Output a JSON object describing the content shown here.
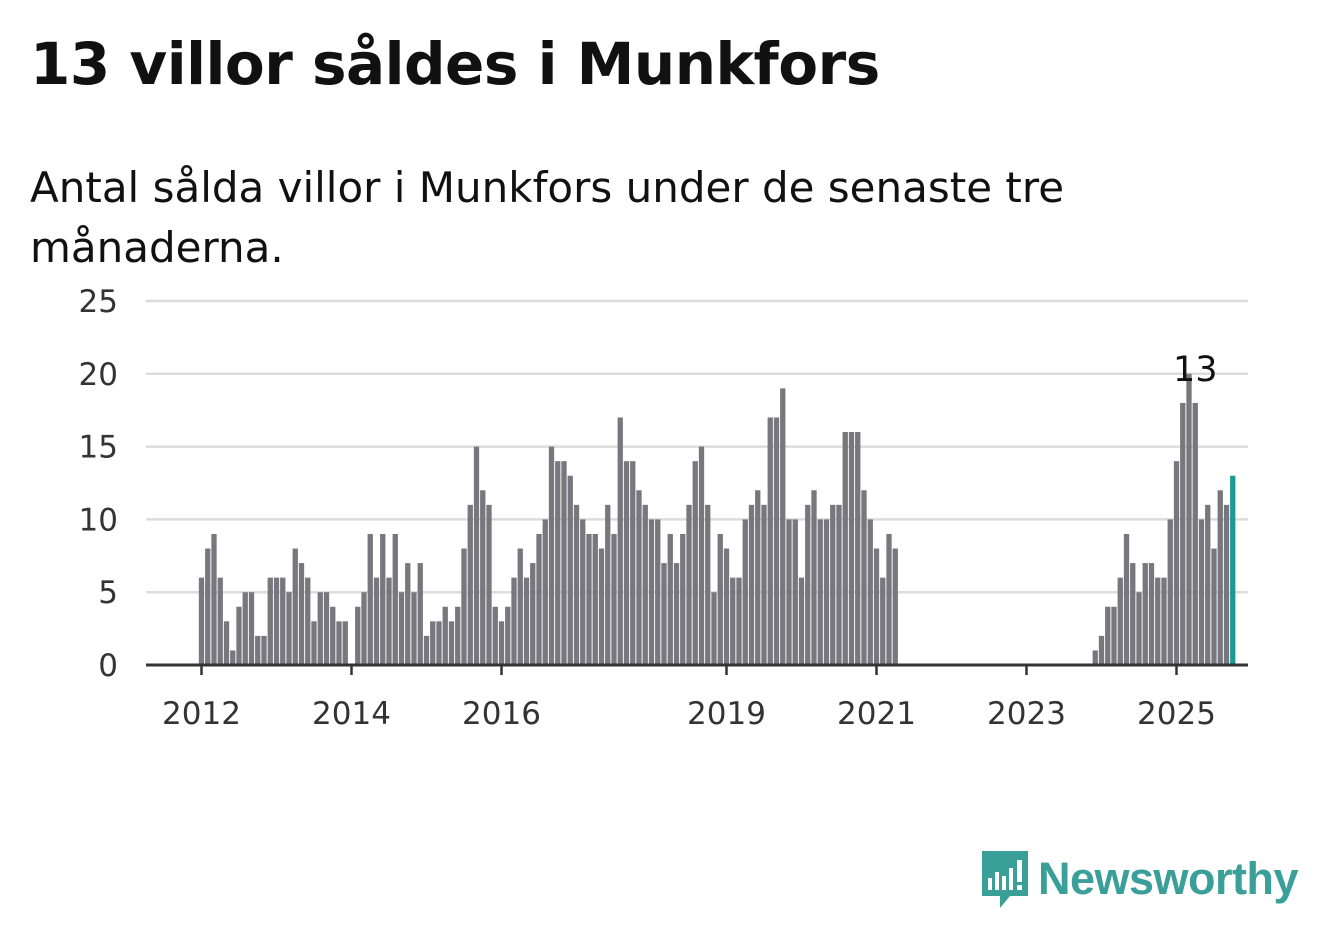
{
  "title": "13 villor såldes i Munkfors",
  "subtitle": "Antal sålda villor i Munkfors under de senaste tre månaderna.",
  "brand": {
    "name": "Newsworthy",
    "icon": "newsworthy-logo-icon",
    "color": "#3a9e99"
  },
  "chart_data": {
    "type": "bar",
    "title": "13 villor såldes i Munkfors",
    "subtitle": "Antal sålda villor i Munkfors under de senaste tre månaderna.",
    "ylim": [
      0,
      25
    ],
    "yticks": [
      0,
      5,
      10,
      15,
      20,
      25
    ],
    "xticks": [
      "2012",
      "2014",
      "2016",
      "2019",
      "2021",
      "2023",
      "2025"
    ],
    "grid": true,
    "bar_color": "#78777d",
    "highlight_color": "#1d9a93",
    "start": "2012-01",
    "frequency": "monthly",
    "values": [
      6,
      8,
      9,
      6,
      3,
      1,
      4,
      5,
      5,
      2,
      2,
      6,
      6,
      6,
      5,
      8,
      7,
      6,
      3,
      5,
      5,
      4,
      3,
      3,
      null,
      4,
      5,
      9,
      6,
      9,
      6,
      9,
      5,
      7,
      5,
      7,
      2,
      3,
      3,
      4,
      3,
      4,
      8,
      11,
      15,
      12,
      11,
      4,
      3,
      4,
      6,
      8,
      6,
      7,
      9,
      10,
      15,
      14,
      14,
      13,
      11,
      10,
      9,
      9,
      8,
      11,
      9,
      17,
      14,
      14,
      12,
      11,
      10,
      10,
      7,
      9,
      7,
      9,
      11,
      14,
      15,
      11,
      5,
      9,
      8,
      6,
      6,
      10,
      11,
      12,
      11,
      17,
      17,
      19,
      10,
      10,
      6,
      11,
      12,
      10,
      10,
      11,
      11,
      16,
      16,
      16,
      12,
      10,
      8,
      6,
      9,
      8,
      0,
      0,
      0,
      0,
      0,
      0,
      0,
      0,
      0,
      0,
      0,
      0,
      0,
      0,
      0,
      0,
      0,
      0,
      0,
      0,
      0,
      0,
      0,
      0,
      0,
      0,
      0,
      0,
      0,
      0,
      0,
      1,
      2,
      4,
      4,
      6,
      9,
      7,
      5,
      7,
      7,
      6,
      6,
      10,
      14,
      18,
      20,
      18,
      10,
      11,
      8,
      12,
      11,
      13
    ],
    "annotations": [
      {
        "x": "2025-04",
        "label": "13"
      }
    ]
  }
}
